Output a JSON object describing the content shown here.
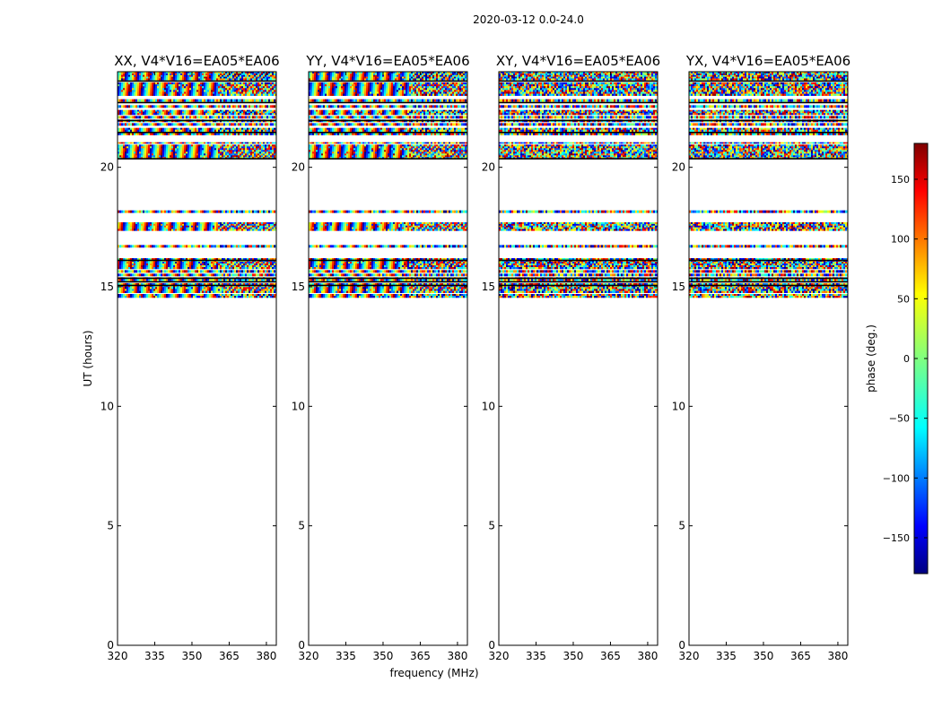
{
  "chart_data": {
    "type": "heatmap",
    "suptitle": "2020-03-12 0.0-24.0",
    "xlabel": "frequency (MHz)",
    "ylabel": "UT (hours)",
    "xlim": [
      320,
      384
    ],
    "ylim": [
      0,
      24
    ],
    "xticks": [
      320,
      335,
      350,
      365,
      380
    ],
    "yticks": [
      0,
      5,
      10,
      15,
      20
    ],
    "panels": [
      {
        "title": "XX, V4*V16=EA05*EA06",
        "pattern": "fringe"
      },
      {
        "title": "YY, V4*V16=EA05*EA06",
        "pattern": "fringe"
      },
      {
        "title": "XY, V4*V16=EA05*EA06",
        "pattern": "noise"
      },
      {
        "title": "YX, V4*V16=EA05*EA06",
        "pattern": "noise"
      }
    ],
    "colorbar": {
      "label": "phase (deg.)",
      "range": [
        -180,
        180
      ],
      "ticks": [
        150,
        100,
        50,
        0,
        -50,
        -100,
        -150
      ],
      "tick_labels": [
        "150",
        "100",
        "50",
        "0",
        "−50",
        "−100",
        "−150"
      ],
      "colormap": "jet"
    },
    "data_bands_ut": [
      [
        14.55,
        14.7
      ],
      [
        14.75,
        15.15
      ],
      [
        15.25,
        15.4
      ],
      [
        15.45,
        15.55
      ],
      [
        15.6,
        15.7
      ],
      [
        15.75,
        16.2
      ],
      [
        16.65,
        16.75
      ],
      [
        17.35,
        17.7
      ],
      [
        18.1,
        18.2
      ],
      [
        20.35,
        20.95
      ],
      [
        21.0,
        21.05
      ],
      [
        21.35,
        21.45
      ],
      [
        21.5,
        21.65
      ],
      [
        21.75,
        21.85
      ],
      [
        21.9,
        22.0
      ],
      [
        22.05,
        22.15
      ],
      [
        22.2,
        22.4
      ],
      [
        22.5,
        22.6
      ],
      [
        22.75,
        22.85
      ],
      [
        23.0,
        23.55
      ],
      [
        23.65,
        24.0
      ]
    ],
    "black_lines_ut": [
      15.05,
      15.2,
      15.35,
      16.1,
      20.35,
      21.45,
      21.95,
      22.7,
      23.6
    ]
  }
}
